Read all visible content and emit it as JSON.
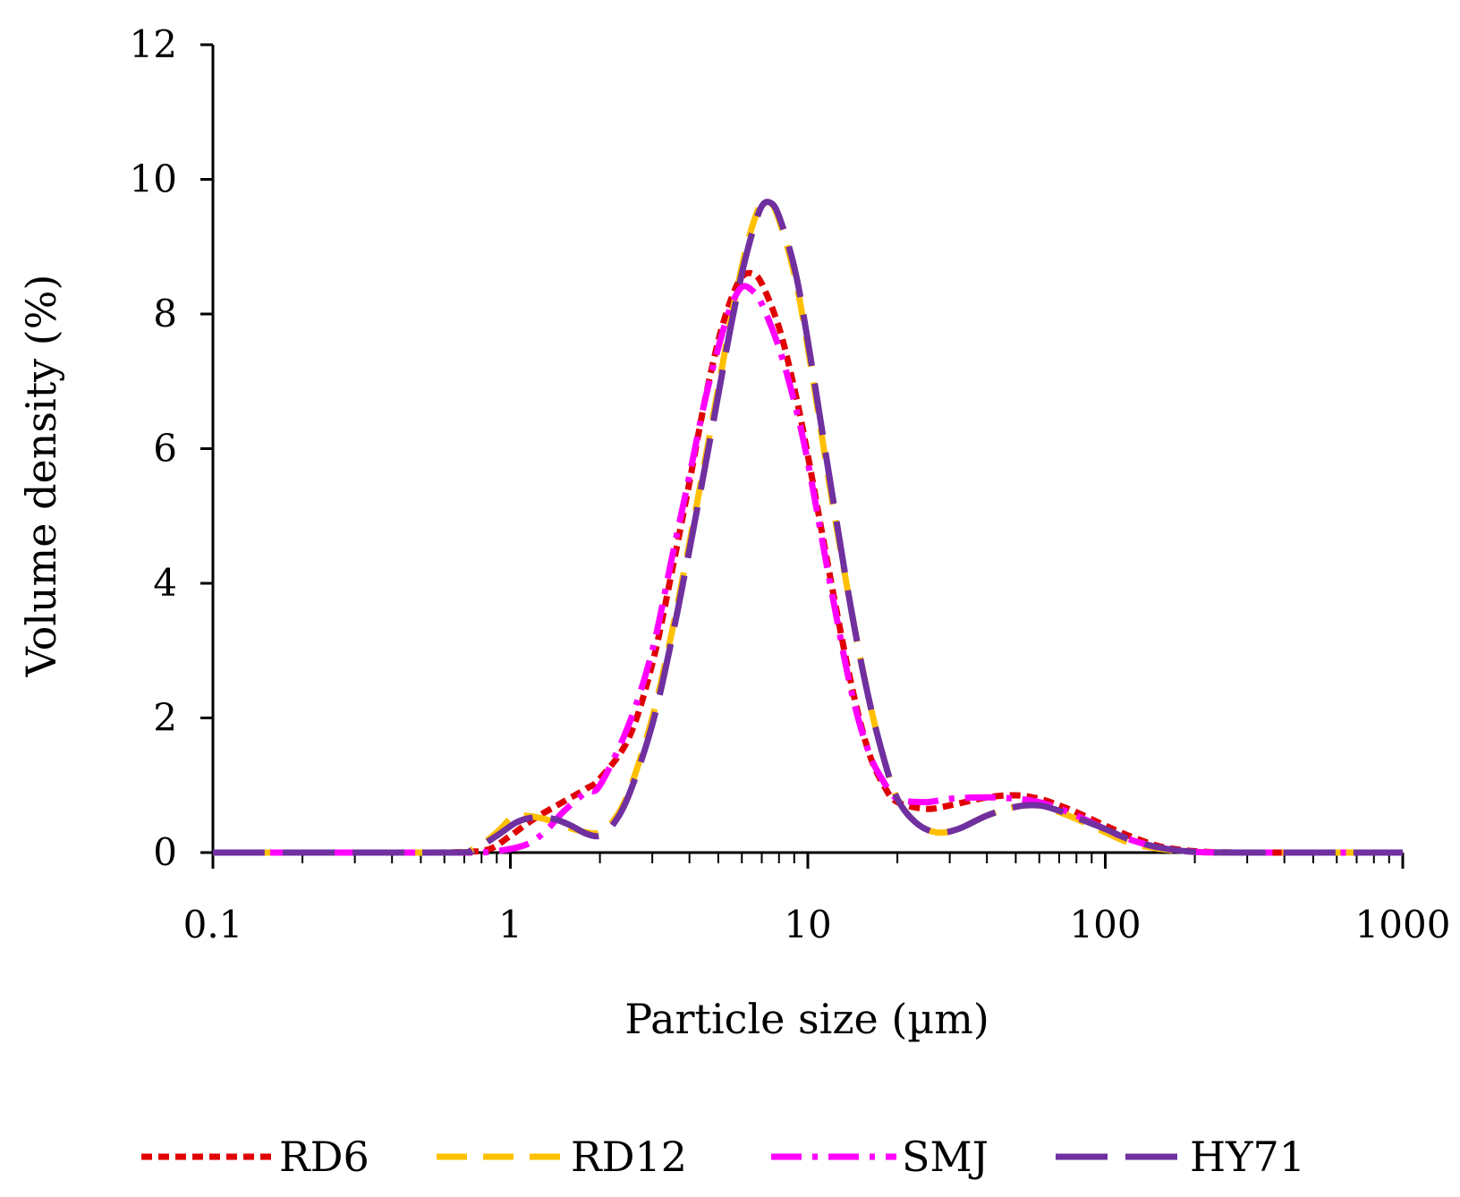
{
  "chart_data": {
    "type": "line",
    "title": "",
    "xlabel": "Particle size (µm)",
    "ylabel": "Volume density (%)",
    "xscale": "log",
    "xlim": [
      0.1,
      1000
    ],
    "ylim": [
      0,
      12
    ],
    "xticks": [
      0.1,
      1,
      10,
      100,
      1000
    ],
    "xtick_labels": [
      "0.1",
      "1",
      "10",
      "100",
      "1000"
    ],
    "yticks": [
      0,
      2,
      4,
      6,
      8,
      10,
      12
    ],
    "ytick_labels": [
      "0",
      "2",
      "4",
      "6",
      "8",
      "10",
      "12"
    ],
    "grid": false,
    "legend_position": "bottom",
    "series": [
      {
        "name": "RD6",
        "color": "#e00000",
        "dash": "short-dash",
        "points": [
          [
            0.1,
            0
          ],
          [
            0.5,
            0
          ],
          [
            0.7,
            0.01
          ],
          [
            0.85,
            0.05
          ],
          [
            1,
            0.25
          ],
          [
            1.2,
            0.5
          ],
          [
            1.5,
            0.75
          ],
          [
            1.8,
            0.95
          ],
          [
            2,
            1.1
          ],
          [
            2.5,
            1.7
          ],
          [
            3,
            2.8
          ],
          [
            3.5,
            4.2
          ],
          [
            4,
            5.5
          ],
          [
            4.5,
            6.7
          ],
          [
            5,
            7.6
          ],
          [
            5.5,
            8.2
          ],
          [
            6,
            8.55
          ],
          [
            6.5,
            8.6
          ],
          [
            7,
            8.45
          ],
          [
            8,
            7.8
          ],
          [
            9,
            6.9
          ],
          [
            10,
            5.9
          ],
          [
            12,
            4.0
          ],
          [
            14,
            2.5
          ],
          [
            16,
            1.5
          ],
          [
            18,
            1.0
          ],
          [
            20,
            0.75
          ],
          [
            25,
            0.65
          ],
          [
            30,
            0.7
          ],
          [
            40,
            0.82
          ],
          [
            50,
            0.85
          ],
          [
            60,
            0.8
          ],
          [
            70,
            0.7
          ],
          [
            80,
            0.6
          ],
          [
            100,
            0.4
          ],
          [
            120,
            0.25
          ],
          [
            150,
            0.1
          ],
          [
            180,
            0.04
          ],
          [
            220,
            0.01
          ],
          [
            300,
            0
          ],
          [
            1000,
            0
          ]
        ]
      },
      {
        "name": "RD12",
        "color": "#ffc000",
        "dash": "dash",
        "points": [
          [
            0.1,
            0
          ],
          [
            0.6,
            0
          ],
          [
            0.75,
            0.05
          ],
          [
            0.9,
            0.3
          ],
          [
            1,
            0.5
          ],
          [
            1.1,
            0.55
          ],
          [
            1.3,
            0.5
          ],
          [
            1.5,
            0.4
          ],
          [
            1.8,
            0.3
          ],
          [
            2,
            0.3
          ],
          [
            2.2,
            0.45
          ],
          [
            2.5,
            0.9
          ],
          [
            3,
            2.0
          ],
          [
            3.5,
            3.3
          ],
          [
            4,
            4.6
          ],
          [
            4.5,
            5.8
          ],
          [
            5,
            6.9
          ],
          [
            5.5,
            7.9
          ],
          [
            6,
            8.7
          ],
          [
            6.5,
            9.3
          ],
          [
            7,
            9.65
          ],
          [
            7.5,
            9.65
          ],
          [
            8,
            9.4
          ],
          [
            9,
            8.6
          ],
          [
            10,
            7.5
          ],
          [
            12,
            5.3
          ],
          [
            14,
            3.6
          ],
          [
            16,
            2.3
          ],
          [
            18,
            1.4
          ],
          [
            20,
            0.8
          ],
          [
            23,
            0.45
          ],
          [
            27,
            0.3
          ],
          [
            32,
            0.35
          ],
          [
            40,
            0.55
          ],
          [
            50,
            0.68
          ],
          [
            60,
            0.7
          ],
          [
            70,
            0.6
          ],
          [
            80,
            0.5
          ],
          [
            100,
            0.3
          ],
          [
            120,
            0.15
          ],
          [
            150,
            0.06
          ],
          [
            200,
            0.01
          ],
          [
            300,
            0
          ],
          [
            1000,
            0
          ]
        ]
      },
      {
        "name": "SMJ",
        "color": "#ff00ff",
        "dash": "dash-dot",
        "points": [
          [
            0.1,
            0
          ],
          [
            0.5,
            0
          ],
          [
            0.8,
            0
          ],
          [
            1.1,
            0.1
          ],
          [
            1.3,
            0.3
          ],
          [
            1.5,
            0.6
          ],
          [
            1.8,
            0.9
          ],
          [
            2,
            1.0
          ],
          [
            2.5,
            1.9
          ],
          [
            3,
            3.0
          ],
          [
            3.5,
            4.4
          ],
          [
            4,
            5.6
          ],
          [
            4.5,
            6.7
          ],
          [
            5,
            7.5
          ],
          [
            5.5,
            8.1
          ],
          [
            6,
            8.4
          ],
          [
            6.5,
            8.35
          ],
          [
            7,
            8.15
          ],
          [
            8,
            7.5
          ],
          [
            9,
            6.7
          ],
          [
            10,
            5.8
          ],
          [
            12,
            3.9
          ],
          [
            14,
            2.4
          ],
          [
            16,
            1.5
          ],
          [
            18,
            1.05
          ],
          [
            20,
            0.8
          ],
          [
            25,
            0.75
          ],
          [
            30,
            0.8
          ],
          [
            40,
            0.82
          ],
          [
            50,
            0.8
          ],
          [
            60,
            0.75
          ],
          [
            70,
            0.65
          ],
          [
            80,
            0.55
          ],
          [
            100,
            0.35
          ],
          [
            120,
            0.2
          ],
          [
            150,
            0.08
          ],
          [
            200,
            0.01
          ],
          [
            300,
            0
          ],
          [
            1000,
            0
          ]
        ]
      },
      {
        "name": "HY71",
        "color": "#7030a0",
        "dash": "long-dash",
        "points": [
          [
            0.1,
            0
          ],
          [
            0.6,
            0
          ],
          [
            0.75,
            0.05
          ],
          [
            0.9,
            0.25
          ],
          [
            1.05,
            0.45
          ],
          [
            1.2,
            0.52
          ],
          [
            1.4,
            0.5
          ],
          [
            1.6,
            0.4
          ],
          [
            1.8,
            0.28
          ],
          [
            2,
            0.25
          ],
          [
            2.2,
            0.4
          ],
          [
            2.5,
            0.85
          ],
          [
            3,
            1.9
          ],
          [
            3.5,
            3.2
          ],
          [
            4,
            4.5
          ],
          [
            4.5,
            5.7
          ],
          [
            5,
            6.8
          ],
          [
            5.5,
            7.8
          ],
          [
            6,
            8.6
          ],
          [
            6.5,
            9.2
          ],
          [
            7,
            9.6
          ],
          [
            7.5,
            9.65
          ],
          [
            8,
            9.45
          ],
          [
            9,
            8.7
          ],
          [
            10,
            7.6
          ],
          [
            12,
            5.4
          ],
          [
            14,
            3.6
          ],
          [
            16,
            2.3
          ],
          [
            18,
            1.4
          ],
          [
            20,
            0.8
          ],
          [
            23,
            0.45
          ],
          [
            27,
            0.3
          ],
          [
            32,
            0.35
          ],
          [
            40,
            0.55
          ],
          [
            50,
            0.68
          ],
          [
            60,
            0.7
          ],
          [
            70,
            0.62
          ],
          [
            80,
            0.52
          ],
          [
            100,
            0.35
          ],
          [
            120,
            0.2
          ],
          [
            150,
            0.08
          ],
          [
            200,
            0.01
          ],
          [
            300,
            0
          ],
          [
            1000,
            0
          ]
        ]
      }
    ]
  }
}
